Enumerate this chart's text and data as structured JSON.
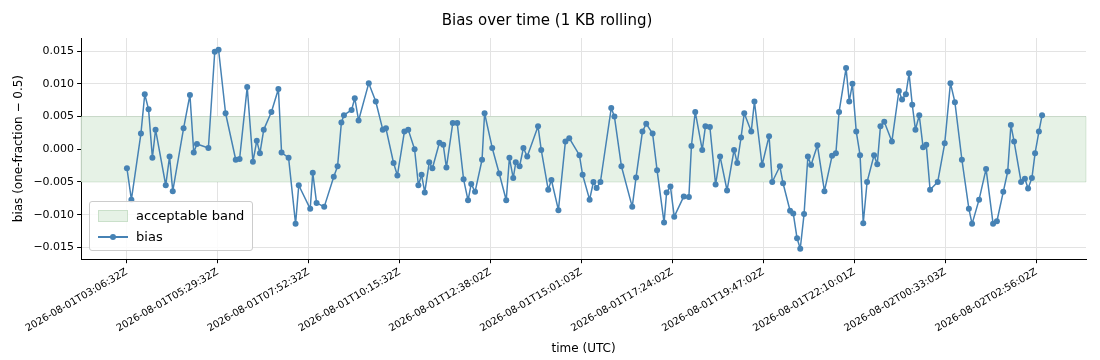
{
  "chart_data": {
    "type": "line",
    "title": "Bias over time (1 KB rolling)",
    "xlabel": "time (UTC)",
    "ylabel": "bias (one-fraction − 0.5)",
    "xlim": [
      "2026-08-01T01:55",
      "2026-08-02T04:14"
    ],
    "ylim": [
      -0.0168,
      0.017
    ],
    "xticks": [
      {
        "value": "2026-08-01T03:06:32",
        "label": "2026-08-01T03:06:32Z"
      },
      {
        "value": "2026-08-01T05:29:32",
        "label": "2026-08-01T05:29:32Z"
      },
      {
        "value": "2026-08-01T07:52:32",
        "label": "2026-08-01T07:52:32Z"
      },
      {
        "value": "2026-08-01T10:15:32",
        "label": "2026-08-01T10:15:32Z"
      },
      {
        "value": "2026-08-01T12:38:02",
        "label": "2026-08-01T12:38:02Z"
      },
      {
        "value": "2026-08-01T15:01:03",
        "label": "2026-08-01T15:01:03Z"
      },
      {
        "value": "2026-08-01T17:24:02",
        "label": "2026-08-01T17:24:02Z"
      },
      {
        "value": "2026-08-01T19:47:02",
        "label": "2026-08-01T19:47:02Z"
      },
      {
        "value": "2026-08-01T22:10:01",
        "label": "2026-08-01T22:10:01Z"
      },
      {
        "value": "2026-08-02T00:33:03",
        "label": "2026-08-02T00:33:03Z"
      },
      {
        "value": "2026-08-02T02:56:02",
        "label": "2026-08-02T02:56:02Z"
      }
    ],
    "yticks": [
      {
        "value": -0.015,
        "label": "−0.015"
      },
      {
        "value": -0.01,
        "label": "−0.010"
      },
      {
        "value": -0.005,
        "label": "−0.005"
      },
      {
        "value": 0,
        "label": "0.000"
      },
      {
        "value": 0.005,
        "label": "0.005"
      },
      {
        "value": 0.01,
        "label": "0.010"
      },
      0.015
    ],
    "grid": true,
    "legend": "bottom left",
    "marker": "circle",
    "line_style": "solid",
    "bands": [
      {
        "axis": "y",
        "from": -0.005,
        "to": 0.005,
        "label": "acceptable band",
        "color": "#e6f2e6"
      }
    ],
    "series": [
      {
        "name": "bias",
        "color": "#4682b4",
        "x": [
          "2026-08-01T03:07",
          "2026-08-01T03:14",
          "2026-08-01T03:29",
          "2026-08-01T03:35",
          "2026-08-01T03:41",
          "2026-08-01T03:47",
          "2026-08-01T03:52",
          "2026-08-01T04:08",
          "2026-08-01T04:14",
          "2026-08-01T04:19",
          "2026-08-01T04:36",
          "2026-08-01T04:46",
          "2026-08-01T04:52",
          "2026-08-01T04:57",
          "2026-08-01T05:15",
          "2026-08-01T05:25",
          "2026-08-01T05:31",
          "2026-08-01T05:42",
          "2026-08-01T05:58",
          "2026-08-01T06:04",
          "2026-08-01T06:16",
          "2026-08-01T06:25",
          "2026-08-01T06:31",
          "2026-08-01T06:36",
          "2026-08-01T06:42",
          "2026-08-01T06:54",
          "2026-08-01T07:05",
          "2026-08-01T07:10",
          "2026-08-01T07:21",
          "2026-08-01T07:32",
          "2026-08-01T07:37",
          "2026-08-01T07:55",
          "2026-08-01T07:59",
          "2026-08-01T08:05",
          "2026-08-01T08:17",
          "2026-08-01T08:32",
          "2026-08-01T08:38",
          "2026-08-01T08:44",
          "2026-08-01T08:48",
          "2026-08-01T09:00",
          "2026-08-01T09:05",
          "2026-08-01T09:11",
          "2026-08-01T09:27",
          "2026-08-01T09:38",
          "2026-08-01T09:49",
          "2026-08-01T09:54",
          "2026-08-01T10:06",
          "2026-08-01T10:12",
          "2026-08-01T10:23",
          "2026-08-01T10:29",
          "2026-08-01T10:39",
          "2026-08-01T10:45",
          "2026-08-01T10:50",
          "2026-08-01T10:55",
          "2026-08-01T11:02",
          "2026-08-01T11:07",
          "2026-08-01T11:18",
          "2026-08-01T11:24",
          "2026-08-01T11:29",
          "2026-08-01T11:39",
          "2026-08-01T11:46",
          "2026-08-01T11:56",
          "2026-08-01T12:03",
          "2026-08-01T12:08",
          "2026-08-01T12:14",
          "2026-08-01T12:25",
          "2026-08-01T12:29",
          "2026-08-01T12:41",
          "2026-08-01T12:52",
          "2026-08-01T13:03",
          "2026-08-01T13:08",
          "2026-08-01T13:14",
          "2026-08-01T13:18",
          "2026-08-01T13:24",
          "2026-08-01T13:30",
          "2026-08-01T13:36",
          "2026-08-01T13:53",
          "2026-08-01T13:58",
          "2026-08-01T14:09",
          "2026-08-01T14:14",
          "2026-08-01T14:25",
          "2026-08-01T14:36",
          "2026-08-01T14:42",
          "2026-08-01T14:58",
          "2026-08-01T15:03",
          "2026-08-01T15:14",
          "2026-08-01T15:20",
          "2026-08-01T15:25",
          "2026-08-01T15:31",
          "2026-08-01T15:48",
          "2026-08-01T15:53",
          "2026-08-01T16:04",
          "2026-08-01T16:21",
          "2026-08-01T16:27",
          "2026-08-01T16:37",
          "2026-08-01T16:43",
          "2026-08-01T16:53",
          "2026-08-01T17:00",
          "2026-08-01T17:11",
          "2026-08-01T17:15",
          "2026-08-01T17:21",
          "2026-08-01T17:27",
          "2026-08-01T17:42",
          "2026-08-01T17:50",
          "2026-08-01T17:54",
          "2026-08-01T18:00",
          "2026-08-01T18:11",
          "2026-08-01T18:16",
          "2026-08-01T18:23",
          "2026-08-01T18:32",
          "2026-08-01T18:39",
          "2026-08-01T18:50",
          "2026-08-01T19:01",
          "2026-08-01T19:06",
          "2026-08-01T19:12",
          "2026-08-01T19:17",
          "2026-08-01T19:28",
          "2026-08-01T19:33",
          "2026-08-01T19:45",
          "2026-08-01T19:56",
          "2026-08-01T20:01",
          "2026-08-01T20:13",
          "2026-08-01T20:18",
          "2026-08-01T20:29",
          "2026-08-01T20:34",
          "2026-08-01T20:40",
          "2026-08-01T20:45",
          "2026-08-01T20:51",
          "2026-08-01T20:57",
          "2026-08-01T21:02",
          "2026-08-01T21:12",
          "2026-08-01T21:23",
          "2026-08-01T21:35",
          "2026-08-01T21:41",
          "2026-08-01T21:46",
          "2026-08-01T21:57",
          "2026-08-01T22:02",
          "2026-08-01T22:07",
          "2026-08-01T22:13",
          "2026-08-01T22:19",
          "2026-08-01T22:24",
          "2026-08-01T22:30",
          "2026-08-01T22:41",
          "2026-08-01T22:46",
          "2026-08-01T22:51",
          "2026-08-01T22:57",
          "2026-08-01T23:09",
          "2026-08-01T23:20",
          "2026-08-01T23:25",
          "2026-08-01T23:31",
          "2026-08-01T23:36",
          "2026-08-01T23:41",
          "2026-08-01T23:46",
          "2026-08-01T23:52",
          "2026-08-01T23:58",
          "2026-08-02T00:03",
          "2026-08-02T00:09",
          "2026-08-02T00:21",
          "2026-08-02T00:32",
          "2026-08-02T00:41",
          "2026-08-02T00:48",
          "2026-08-02T00:59",
          "2026-08-02T01:10",
          "2026-08-02T01:15",
          "2026-08-02T01:26",
          "2026-08-02T01:37",
          "2026-08-02T01:48",
          "2026-08-02T01:54",
          "2026-08-02T02:04",
          "2026-08-02T02:11",
          "2026-08-02T02:16",
          "2026-08-02T02:21",
          "2026-08-02T02:32",
          "2026-08-02T02:38",
          "2026-08-02T02:43",
          "2026-08-02T02:49",
          "2026-08-02T02:54",
          "2026-08-02T03:00",
          "2026-08-02T03:05"
        ],
        "values": [
          -0.0029,
          -0.0077,
          0.0024,
          0.0084,
          0.0061,
          -0.0013,
          0.003,
          -0.0055,
          -0.0011,
          -0.0064,
          0.0032,
          0.0083,
          -0.0005,
          0.0008,
          0.0002,
          0.0149,
          0.0152,
          0.0055,
          -0.0016,
          -0.0015,
          0.0095,
          -0.0019,
          0.0013,
          -0.0006,
          0.003,
          0.0057,
          0.0092,
          -0.0005,
          -0.0013,
          -0.0114,
          -0.0055,
          -0.0091,
          -0.0036,
          -0.0082,
          -0.0088,
          -0.0042,
          -0.0026,
          0.0041,
          0.0052,
          0.006,
          0.0078,
          0.0044,
          0.0101,
          0.0073,
          0.003,
          0.0032,
          -0.0021,
          -0.004,
          0.0027,
          0.003,
          0.0,
          -0.0055,
          -0.0039,
          -0.0066,
          -0.002,
          -0.0029,
          0.001,
          0.0007,
          -0.0028,
          0.004,
          0.004,
          -0.0046,
          -0.0078,
          -0.0053,
          -0.0065,
          -0.0016,
          0.0055,
          0.0002,
          -0.0037,
          -0.0078,
          -0.0013,
          -0.0044,
          -0.002,
          -0.0026,
          0.0002,
          -0.0011,
          0.0035,
          -0.0001,
          -0.0062,
          -0.0047,
          -0.0093,
          0.0012,
          0.0017,
          -0.0009,
          -0.0039,
          -0.0077,
          -0.005,
          -0.0059,
          -0.005,
          0.0063,
          0.005,
          -0.0026,
          -0.0088,
          -0.0043,
          0.0027,
          0.0039,
          0.0024,
          -0.0032,
          -0.0112,
          -0.0066,
          -0.0057,
          -0.0103,
          -0.0072,
          -0.0073,
          0.0005,
          0.0057,
          -0.0001,
          0.0035,
          0.0034,
          -0.0054,
          -0.0011,
          -0.0063,
          -0.0001,
          -0.0021,
          0.0018,
          0.0055,
          0.0027,
          0.0073,
          -0.0024,
          0.002,
          -0.005,
          -0.0026,
          -0.0052,
          -0.0094,
          -0.0098,
          -0.0136,
          -0.0152,
          -0.0099,
          -0.0011,
          -0.0024,
          0.0006,
          -0.0064,
          -0.001,
          -0.0006,
          0.0057,
          0.0124,
          0.0073,
          0.01,
          0.0027,
          -0.0009,
          -0.0113,
          -0.005,
          -0.0009,
          -0.0023,
          0.0035,
          0.0042,
          0.0012,
          0.0089,
          0.0076,
          0.0084,
          0.0116,
          0.0068,
          0.003,
          0.0052,
          0.0003,
          0.0007,
          -0.0062,
          -0.005,
          0.0009,
          0.0101,
          0.0072,
          -0.0016,
          -0.0091,
          -0.0114,
          -0.0077,
          -0.003,
          -0.0114,
          -0.011,
          -0.0065,
          -0.0034,
          0.0037,
          0.0012,
          -0.005,
          -0.0045,
          -0.006,
          -0.0044,
          -0.0006,
          0.0027,
          0.0052
        ]
      }
    ]
  }
}
